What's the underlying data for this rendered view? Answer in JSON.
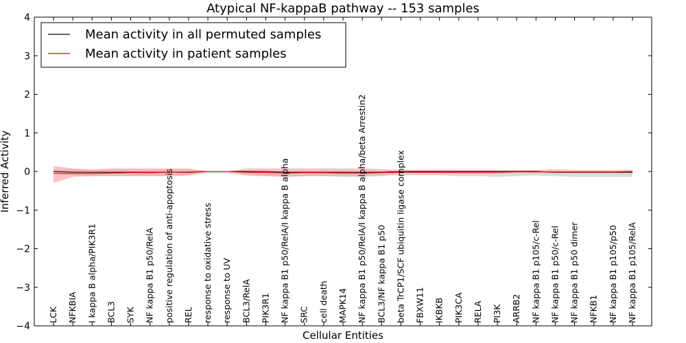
{
  "chart_data": {
    "type": "line",
    "title": "Atypical NF-kappaB pathway -- 153 samples",
    "xlabel": "Cellular Entities",
    "ylabel": "Inferred Activity",
    "ylim": [
      -4,
      4
    ],
    "yticks": [
      "4",
      "3",
      "2",
      "1",
      "0",
      "−1",
      "−2",
      "−3",
      "−4"
    ],
    "legend": {
      "placement": "top-left",
      "entries": [
        {
          "label": "Mean activity in all permuted samples",
          "color": "#000000"
        },
        {
          "label": "Mean activity in patient samples",
          "color": "#ff0000"
        }
      ]
    },
    "categories": [
      "LCK",
      "NFKBIA",
      "I kappa B alpha/PIK3R1",
      "BCL3",
      "SYK",
      "NF kappa B1 p50/RelA",
      "positive regulation of anti-apoptosis",
      "REL",
      "response to oxidative stress",
      "response to UV",
      "BCL3/RelA",
      "PIK3R1",
      "NF kappa B1 p50/RelA/I kappa B alpha",
      "SRC",
      "cell death",
      "MAPK14",
      "NF kappa B1 p50/RelA/I kappa B alpha/beta Arrestin2",
      "BCL3/NF kappa B1 p50",
      "beta TrCP1/SCF ubiquitin ligase complex",
      "FBXW11",
      "IKBKB",
      "PIK3CA",
      "RELA",
      "PI3K",
      "ARRB2",
      "NF kappa B1 p105/c-Rel",
      "NF kappa B1 p50/c-Rel",
      "NF kappa B1 p50 dimer",
      "NFKB1",
      "NF kappa B1 p105/p50",
      "NF kappa B1 p105/RelA"
    ],
    "series": [
      {
        "name": "Mean activity in all permuted samples",
        "color": "#000000",
        "values": [
          0.0,
          -0.02,
          -0.02,
          -0.02,
          -0.02,
          -0.02,
          -0.02,
          -0.02,
          0.0,
          0.0,
          0.0,
          0.0,
          -0.02,
          -0.02,
          -0.02,
          -0.02,
          -0.02,
          -0.02,
          0.0,
          0.0,
          0.0,
          0.0,
          0.0,
          0.0,
          0.0,
          0.0,
          -0.02,
          -0.02,
          -0.02,
          -0.02,
          -0.02
        ],
        "band_lower": [
          -0.05,
          -0.1,
          -0.12,
          -0.12,
          -0.12,
          -0.12,
          -0.12,
          -0.1,
          -0.05,
          -0.05,
          -0.1,
          -0.12,
          -0.14,
          -0.12,
          -0.12,
          -0.14,
          -0.14,
          -0.12,
          -0.1,
          -0.1,
          -0.1,
          -0.12,
          -0.12,
          -0.14,
          -0.12,
          -0.1,
          -0.12,
          -0.14,
          -0.14,
          -0.14,
          -0.14
        ],
        "band_upper": [
          0.05,
          0.05,
          0.05,
          0.05,
          0.05,
          0.05,
          0.05,
          0.05,
          0.02,
          0.02,
          0.02,
          0.02,
          0.02,
          0.02,
          0.02,
          0.02,
          0.02,
          0.02,
          0.02,
          0.02,
          0.02,
          0.02,
          0.02,
          0.02,
          0.02,
          0.02,
          0.02,
          0.02,
          0.02,
          0.02,
          0.02
        ],
        "band_color": "#cccccc"
      },
      {
        "name": "Mean activity in patient samples",
        "color": "#ff0000",
        "values": [
          -0.05,
          -0.05,
          -0.05,
          -0.04,
          -0.03,
          -0.03,
          -0.02,
          -0.01,
          0.0,
          0.0,
          -0.02,
          -0.03,
          -0.04,
          -0.03,
          -0.03,
          -0.04,
          -0.04,
          -0.03,
          -0.02,
          -0.02,
          -0.02,
          -0.02,
          -0.02,
          -0.02,
          -0.01,
          -0.01,
          -0.01,
          -0.01,
          -0.01,
          -0.01,
          0.0
        ],
        "band_lower": [
          -0.3,
          -0.14,
          -0.12,
          -0.12,
          -0.12,
          -0.12,
          -0.12,
          -0.1,
          0.0,
          0.0,
          -0.1,
          -0.12,
          -0.14,
          -0.12,
          -0.12,
          -0.12,
          -0.12,
          -0.1,
          -0.06,
          -0.06,
          -0.06,
          -0.06,
          -0.06,
          -0.06,
          -0.04,
          -0.04,
          -0.04,
          -0.04,
          -0.04,
          -0.04,
          -0.04
        ],
        "band_upper": [
          0.14,
          0.08,
          0.05,
          0.08,
          0.08,
          0.08,
          0.08,
          0.08,
          0.0,
          0.0,
          0.08,
          0.08,
          0.08,
          0.08,
          0.08,
          0.08,
          0.08,
          0.06,
          0.04,
          0.04,
          0.04,
          0.04,
          0.04,
          0.04,
          0.04,
          0.04,
          0.06,
          0.04,
          0.04,
          0.04,
          0.04
        ],
        "band_color": "#ff9999"
      }
    ]
  }
}
